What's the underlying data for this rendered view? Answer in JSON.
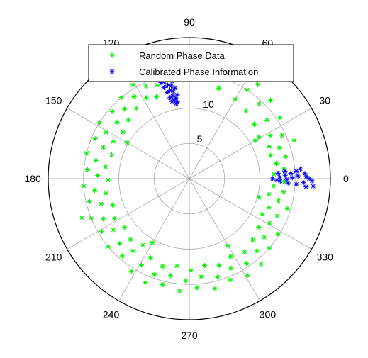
{
  "chart_data": {
    "type": "scatter",
    "coordinate_system": "polar",
    "angle_unit": "degrees",
    "angle_ticks": [
      0,
      30,
      60,
      90,
      120,
      150,
      180,
      210,
      240,
      270,
      300,
      330
    ],
    "radius_ticks": [
      5,
      10,
      15
    ],
    "radius_range": [
      0,
      20
    ],
    "grid": true,
    "legend_position": "top",
    "series": [
      {
        "name": "Random Phase Data",
        "color": "#00ee00",
        "marker": "asterisk",
        "points": [
          [
            98,
            15
          ],
          [
            94,
            16.5
          ],
          [
            101,
            17
          ],
          [
            106,
            15.8
          ],
          [
            85,
            14.5
          ],
          [
            80,
            16
          ],
          [
            76,
            17.5
          ],
          [
            72,
            13.5
          ],
          [
            68,
            15.5
          ],
          [
            64,
            17
          ],
          [
            60,
            13
          ],
          [
            57,
            15
          ],
          [
            54,
            16.5
          ],
          [
            50,
            12.5
          ],
          [
            47,
            14.5
          ],
          [
            44,
            16
          ],
          [
            40,
            12
          ],
          [
            37,
            13.8
          ],
          [
            34,
            15.5
          ],
          [
            31,
            11.5
          ],
          [
            28,
            13
          ],
          [
            25,
            14.5
          ],
          [
            22,
            12.2
          ],
          [
            19,
            13.5
          ],
          [
            16,
            12
          ],
          [
            13,
            14
          ],
          [
            10,
            12.5
          ],
          [
            6,
            13.5
          ],
          [
            3,
            12
          ],
          [
            -2,
            13.5
          ],
          [
            -5,
            12
          ],
          [
            -8,
            13.5
          ],
          [
            -11,
            11.5
          ],
          [
            -14,
            13
          ],
          [
            -17,
            14.5
          ],
          [
            -20,
            12
          ],
          [
            -23,
            13.5
          ],
          [
            -26,
            11.5
          ],
          [
            -29,
            13
          ],
          [
            -32,
            14.8
          ],
          [
            -35,
            12
          ],
          [
            -38,
            13.5
          ],
          [
            -41,
            15
          ],
          [
            -44,
            12.5
          ],
          [
            -47,
            14
          ],
          [
            -50,
            15.8
          ],
          [
            -53,
            13
          ],
          [
            -56,
            14.5
          ],
          [
            -59,
            16
          ],
          [
            -62,
            12.5
          ],
          [
            -65,
            14
          ],
          [
            -68,
            15.5
          ],
          [
            -71,
            13
          ],
          [
            -74,
            14.5
          ],
          [
            -77,
            16
          ],
          [
            -80,
            12.5
          ],
          [
            -83,
            14
          ],
          [
            -86,
            15.5
          ],
          [
            -89,
            13
          ],
          [
            -92,
            14.5
          ],
          [
            -95,
            16
          ],
          [
            -98,
            12.5
          ],
          [
            -101,
            14
          ],
          [
            -104,
            15.5
          ],
          [
            -107,
            13
          ],
          [
            -110,
            14.5
          ],
          [
            -113,
            16
          ],
          [
            -116,
            12.5
          ],
          [
            -119,
            14
          ],
          [
            -122,
            15.5
          ],
          [
            -125,
            11.5
          ],
          [
            -128,
            13
          ],
          [
            -131,
            14.5
          ],
          [
            -134,
            12
          ],
          [
            -137,
            13.5
          ],
          [
            -140,
            15
          ],
          [
            -143,
            11.5
          ],
          [
            -146,
            13
          ],
          [
            -149,
            14.5
          ],
          [
            -152,
            12
          ],
          [
            -155,
            13.5
          ],
          [
            -158,
            15
          ],
          [
            -161,
            11.5
          ],
          [
            -164,
            13
          ],
          [
            -167,
            14.5
          ],
          [
            -170,
            12
          ],
          [
            -173,
            13.5
          ],
          [
            -176,
            15
          ],
          [
            -179,
            11.5
          ],
          [
            178,
            13
          ],
          [
            175,
            14.5
          ],
          [
            172,
            12
          ],
          [
            169,
            13.5
          ],
          [
            166,
            15
          ],
          [
            163,
            11.5
          ],
          [
            160,
            13
          ],
          [
            157,
            14.5
          ],
          [
            154,
            12
          ],
          [
            151,
            13.5
          ],
          [
            148,
            15
          ],
          [
            145,
            11.5
          ],
          [
            142,
            13
          ],
          [
            139,
            14.5
          ],
          [
            136,
            12
          ],
          [
            133,
            13.5
          ],
          [
            130,
            15
          ],
          [
            127,
            12.5
          ],
          [
            124,
            14
          ],
          [
            121,
            15.5
          ],
          [
            118,
            13
          ],
          [
            115,
            14.5
          ],
          [
            112,
            12.5
          ],
          [
            109,
            14
          ],
          [
            -60,
            11
          ],
          [
            -120,
            10.5
          ],
          [
            150,
            10.2
          ],
          [
            30,
            10.8
          ],
          [
            -15,
            10.2
          ],
          [
            200,
            16.2
          ],
          [
            20,
            15.8
          ]
        ]
      },
      {
        "name": "Calibrated Phase Information",
        "color": "#0000ee",
        "marker": "asterisk",
        "points": [
          [
            107,
            16.2
          ],
          [
            106,
            15.6
          ],
          [
            105,
            16.8
          ],
          [
            104,
            15
          ],
          [
            104.5,
            14.2
          ],
          [
            103,
            13.6
          ],
          [
            102.5,
            12.8
          ],
          [
            101.5,
            12
          ],
          [
            101,
            11.4
          ],
          [
            100,
            10.8
          ],
          [
            99.5,
            11.6
          ],
          [
            100.5,
            12.6
          ],
          [
            101,
            13.4
          ],
          [
            102,
            14.6
          ],
          [
            103,
            15.4
          ],
          [
            104,
            16.4
          ],
          [
            105,
            17.2
          ],
          [
            106,
            17.8
          ],
          [
            107,
            17.4
          ],
          [
            108,
            16.8
          ],
          [
            108.5,
            15.8
          ],
          [
            107.5,
            15
          ],
          [
            106.5,
            14.2
          ],
          [
            105.5,
            13.4
          ],
          [
            104.5,
            12.6
          ],
          [
            103.5,
            11.8
          ],
          [
            102.5,
            11.2
          ],
          [
            98.8,
            11
          ],
          [
            98.2,
            12
          ],
          [
            99,
            13
          ],
          [
            100,
            14
          ],
          [
            101,
            15
          ],
          [
            102,
            16
          ],
          [
            103,
            17
          ],
          [
            104,
            17.8
          ],
          [
            -1,
            12.4
          ],
          [
            0,
            11.8
          ],
          [
            1,
            12.8
          ],
          [
            2,
            13.6
          ],
          [
            3,
            14.4
          ],
          [
            4,
            15.2
          ],
          [
            5,
            15.8
          ],
          [
            2.5,
            16.4
          ],
          [
            1.5,
            15.4
          ],
          [
            0.5,
            14.6
          ],
          [
            -0.5,
            13.8
          ],
          [
            -1.5,
            12.9
          ],
          [
            -2.5,
            14
          ],
          [
            -3,
            15.2
          ],
          [
            -2,
            16.2
          ],
          [
            -1,
            17.4
          ],
          [
            0,
            17
          ],
          [
            1,
            16.6
          ],
          [
            3.5,
            12.6
          ],
          [
            4.5,
            13.6
          ],
          [
            -4,
            16.6
          ],
          [
            -3.5,
            17.6
          ]
        ]
      }
    ]
  }
}
